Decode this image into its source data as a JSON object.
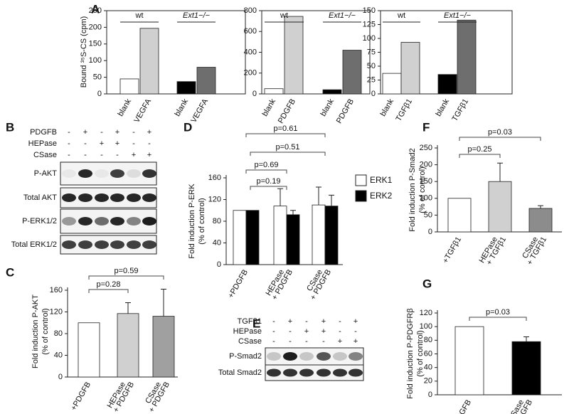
{
  "panel_labels": [
    "A",
    "B",
    "C",
    "D",
    "E",
    "F",
    "G"
  ],
  "chart_data": [
    {
      "type": "bar",
      "ylabel": [
        "Bound ³⁵S-CS (cpm)"
      ],
      "group_labels": [
        "wt",
        "Ext1−/−"
      ],
      "categories": [
        "blank",
        "VEGFA",
        "blank",
        "VEGFA"
      ],
      "values": [
        45,
        197,
        37,
        80
      ],
      "colors": [
        "#ffffff",
        "#d0d0d0",
        "#000000",
        "#6e6e6e"
      ],
      "ylim": [
        0,
        250
      ],
      "yticks": [
        0,
        50,
        100,
        150,
        200,
        250
      ],
      "frame": "box"
    },
    {
      "type": "bar",
      "group_labels": [
        "wt",
        "Ext1−/−"
      ],
      "categories": [
        "blank",
        "PDGFB",
        "blank",
        "PDGFB"
      ],
      "values": [
        50,
        745,
        40,
        420
      ],
      "colors": [
        "#ffffff",
        "#d0d0d0",
        "#000000",
        "#6e6e6e"
      ],
      "ylim": [
        0,
        800
      ],
      "yticks": [
        0,
        200,
        400,
        600,
        800
      ],
      "frame": "box"
    },
    {
      "type": "bar",
      "group_labels": [
        "wt",
        "Ext1−/−"
      ],
      "categories": [
        "blank",
        "TGFβ1",
        "blank",
        "TGFβ1"
      ],
      "values": [
        37,
        93,
        35,
        133
      ],
      "colors": [
        "#ffffff",
        "#d0d0d0",
        "#000000",
        "#6e6e6e"
      ],
      "ylim": [
        0,
        150
      ],
      "yticks": [
        0,
        25,
        50,
        75,
        100,
        125,
        150
      ],
      "frame": "box"
    },
    {
      "type": "bar",
      "ylabel": [
        "Fold induction P-AKT",
        "(% of control)"
      ],
      "categories": [
        [
          "+PDGFB"
        ],
        [
          "HEPase",
          "+ PDGFB"
        ],
        [
          "CSase",
          "+ PDGFB"
        ]
      ],
      "values": [
        100,
        117,
        112
      ],
      "errors": [
        null,
        20,
        50
      ],
      "colors": [
        "#ffffff",
        "#d0d0d0",
        "#a0a0a0"
      ],
      "ylim": [
        0,
        160
      ],
      "yticks": [
        0,
        40,
        80,
        120,
        160
      ],
      "frame": "open",
      "annotations": [
        "p=0.28",
        "p=0.59"
      ]
    },
    {
      "type": "grouped-bar",
      "ylabel": [
        "Fold induction P-ERK",
        "(% of control)"
      ],
      "categories": [
        [
          "+PDGFB"
        ],
        [
          "HEPase",
          "+ PDGFB"
        ],
        [
          "CSase",
          "+ PDGFB"
        ]
      ],
      "series": [
        {
          "name": "ERK1",
          "color": "#ffffff",
          "values": [
            100,
            108,
            110
          ],
          "errors": [
            null,
            32,
            33
          ]
        },
        {
          "name": "ERK2",
          "color": "#000000",
          "values": [
            100,
            92,
            108
          ],
          "errors": [
            null,
            8,
            20
          ]
        }
      ],
      "ylim": [
        0,
        160
      ],
      "yticks": [
        0,
        40,
        80,
        120,
        160
      ],
      "frame": "open",
      "legend": "right",
      "annotations": [
        "p=0.61",
        "p=0.51",
        "p=0.69",
        "p=0.19"
      ]
    },
    {
      "type": "bar",
      "ylabel": [
        "Fold induction P-Smad2",
        "(% of control)"
      ],
      "categories": [
        [
          "+TGFβ1"
        ],
        [
          "HEPase",
          "+ TGFβ1"
        ],
        [
          "CSase",
          "+ TGFβ1"
        ]
      ],
      "values": [
        100,
        150,
        70
      ],
      "errors": [
        null,
        55,
        8
      ],
      "colors": [
        "#ffffff",
        "#d0d0d0",
        "#8c8c8c"
      ],
      "ylim": [
        0,
        250
      ],
      "yticks": [
        0,
        50,
        100,
        150,
        200,
        250
      ],
      "frame": "open",
      "annotations": [
        "p=0.25",
        "p=0.03"
      ]
    },
    {
      "type": "bar",
      "ylabel": [
        "Fold induction P-PDGFRβ",
        "(% of control)"
      ],
      "categories": [
        [
          "+PDGFB"
        ],
        [
          "CSase",
          "+ PDGFB"
        ]
      ],
      "values": [
        100,
        78
      ],
      "errors": [
        null,
        7
      ],
      "colors": [
        "#ffffff",
        "#000000"
      ],
      "ylim": [
        0,
        120
      ],
      "yticks": [
        0,
        20,
        40,
        60,
        80,
        100,
        120
      ],
      "frame": "open",
      "annotations": [
        "p=0.03"
      ]
    }
  ],
  "blots": [
    {
      "treatments": [
        {
          "name": "PDGFB",
          "signs": [
            "-",
            "+",
            "-",
            "+",
            "-",
            "+"
          ]
        },
        {
          "name": "HEPase",
          "signs": [
            "-",
            "-",
            "+",
            "+",
            "-",
            "-"
          ]
        },
        {
          "name": "CSase",
          "signs": [
            "-",
            "-",
            "-",
            "-",
            "+",
            "+"
          ]
        }
      ],
      "rows": [
        "P-AKT",
        "Total AKT",
        "P-ERK1/2",
        "Total ERK1/2"
      ]
    },
    {
      "treatments": [
        {
          "name": "TGFβ1",
          "signs": [
            "-",
            "+",
            "-",
            "+",
            "-",
            "+"
          ]
        },
        {
          "name": "HEPase",
          "signs": [
            "-",
            "-",
            "+",
            "+",
            "-",
            "-"
          ]
        },
        {
          "name": "CSase",
          "signs": [
            "-",
            "-",
            "-",
            "-",
            "+",
            "+"
          ]
        }
      ],
      "rows": [
        "P-Smad2",
        "Total Smad2"
      ]
    }
  ]
}
